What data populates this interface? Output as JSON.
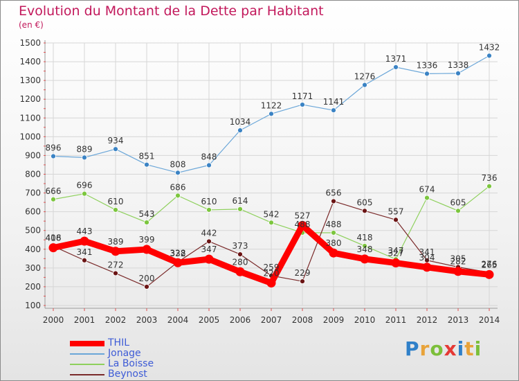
{
  "title": "Evolution du Montant de la Dette par Habitant",
  "unit": "(en €)",
  "logo": "Proxiti",
  "chart_data": {
    "type": "line",
    "title": "Evolution du Montant de la Dette par Habitant",
    "ylabel": "(en €)",
    "ylim": [
      100,
      1500
    ],
    "y_ticks": [
      100,
      200,
      300,
      400,
      500,
      600,
      700,
      800,
      900,
      1000,
      1100,
      1200,
      1300,
      1400,
      1500
    ],
    "grid": true,
    "legend_position": "bottom-left",
    "categories": [
      "2000",
      "2001",
      "2002",
      "2003",
      "2004",
      "2005",
      "2006",
      "2007",
      "2008",
      "2009",
      "2010",
      "2011",
      "2012",
      "2013",
      "2014"
    ],
    "series": [
      {
        "name": "THIL",
        "color": "#ff0000",
        "values": [
          408,
          443,
          389,
          399,
          328,
          347,
          280,
          220,
          527,
          380,
          348,
          327,
          304,
          282,
          265
        ]
      },
      {
        "name": "Jonage",
        "color": "#5b9bd5",
        "values": [
          896,
          889,
          934,
          851,
          808,
          848,
          1034,
          1122,
          1171,
          1141,
          1276,
          1371,
          1336,
          1338,
          1432
        ]
      },
      {
        "name": "La Boisse",
        "color": "#8ed05c",
        "values": [
          666,
          696,
          610,
          543,
          686,
          610,
          614,
          542,
          488,
          488,
          418,
          347,
          674,
          605,
          736
        ]
      },
      {
        "name": "Beynost",
        "color": "#7a2222",
        "values": [
          416,
          341,
          272,
          200,
          332,
          442,
          373,
          259,
          229,
          656,
          605,
          557,
          341,
          305,
          276
        ]
      }
    ]
  }
}
